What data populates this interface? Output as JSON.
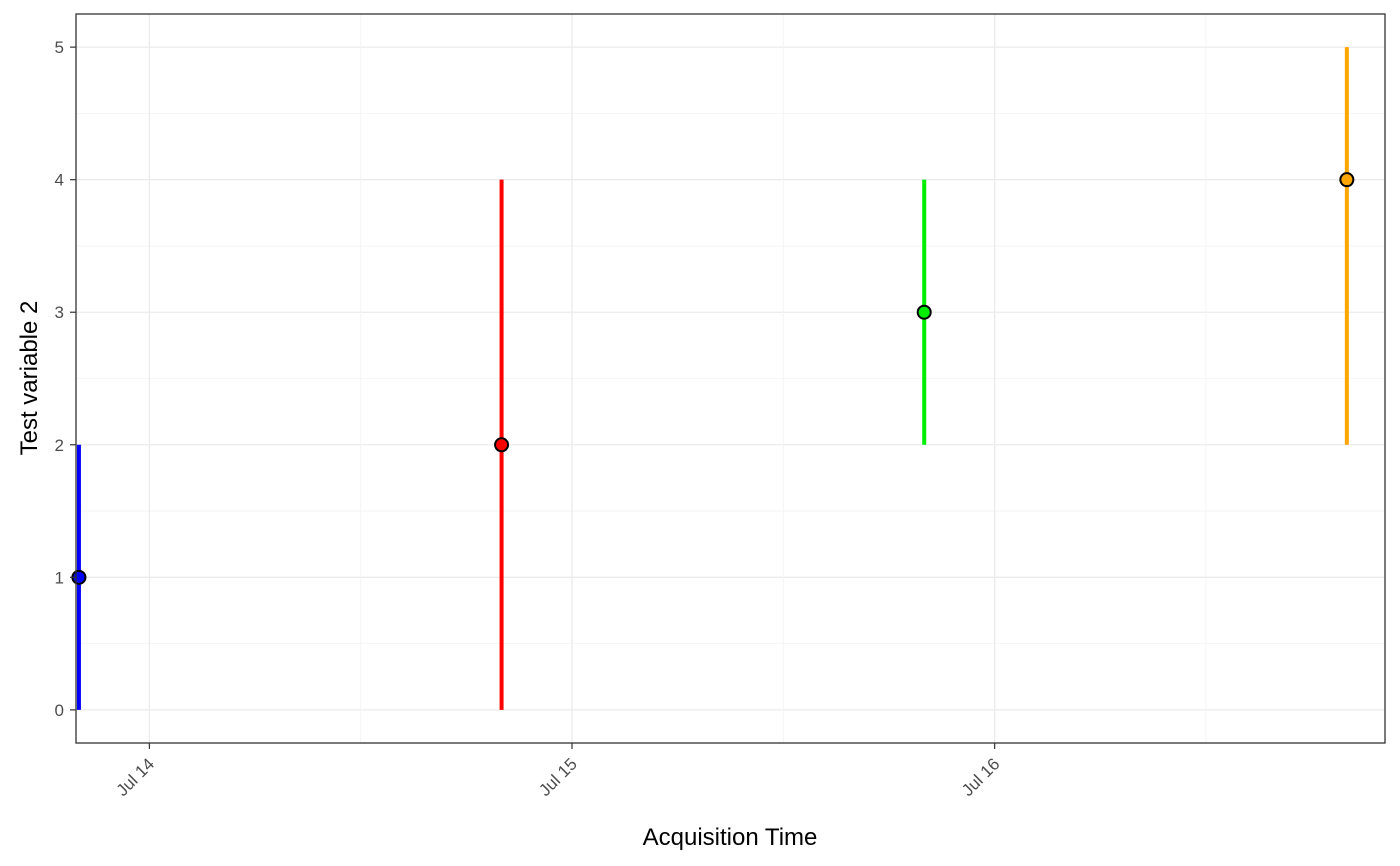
{
  "chart_data": {
    "type": "scatter",
    "title": "",
    "xlabel": "Acquisition Time",
    "ylabel": "Test variable 2",
    "x_type": "date",
    "x_ticks": [
      {
        "value": "2023-07-14T00:00",
        "label": "Jul 14"
      },
      {
        "value": "2023-07-15T00:00",
        "label": "Jul 15"
      },
      {
        "value": "2023-07-16T00:00",
        "label": "Jul 16"
      }
    ],
    "xlim": [
      "2023-07-13T19:50",
      "2023-07-16T22:10"
    ],
    "y_ticks": [
      0,
      1,
      2,
      3,
      4,
      5
    ],
    "ylim": [
      -0.25,
      5.25
    ],
    "grid": true,
    "points": [
      {
        "x": "2023-07-13T20:00",
        "y": 1,
        "ymin": 0,
        "ymax": 2,
        "color": "#0000ff"
      },
      {
        "x": "2023-07-14T20:00",
        "y": 2,
        "ymin": 0,
        "ymax": 4,
        "color": "#ff0000"
      },
      {
        "x": "2023-07-15T20:00",
        "y": 3,
        "ymin": 2,
        "ymax": 4,
        "color": "#00ee00"
      },
      {
        "x": "2023-07-16T20:00",
        "y": 4,
        "ymin": 2,
        "ymax": 5,
        "color": "#ffa500"
      }
    ]
  }
}
